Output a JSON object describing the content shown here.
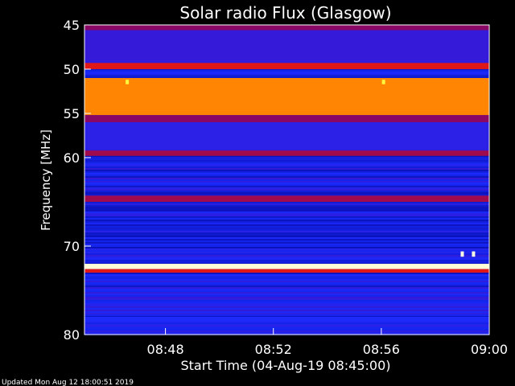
{
  "chart_data": {
    "type": "heatmap",
    "title": "Solar radio Flux (Glasgow)",
    "xlabel": "Start Time (04-Aug-19 08:45:00)",
    "ylabel": "Frequency [MHz]",
    "footer": "Updated Mon Aug 12 18:00:51 2019",
    "x_unit": "time",
    "xlim": [
      "08:45:00",
      "09:00:00"
    ],
    "ylim": [
      45,
      80
    ],
    "y_inverted": true,
    "x_ticks": [
      "08:48",
      "08:52",
      "08:56",
      "09:00"
    ],
    "y_ticks": [
      45,
      50,
      55,
      60,
      70,
      80
    ],
    "colormap": [
      "#000088",
      "#1a2cff",
      "#6000a0",
      "#c01020",
      "#ff2010",
      "#ff8000",
      "#ffff40",
      "#ffffff"
    ],
    "bands": [
      {
        "f_from": 45.0,
        "f_to": 45.6,
        "level": 0.35
      },
      {
        "f_from": 45.6,
        "f_to": 49.0,
        "level": 0.2
      },
      {
        "f_from": 49.3,
        "f_to": 50.0,
        "level": 0.5
      },
      {
        "f_from": 51.0,
        "f_to": 55.2,
        "level": 0.72
      },
      {
        "f_from": 55.2,
        "f_to": 56.0,
        "level": 0.35
      },
      {
        "f_from": 56.0,
        "f_to": 59.0,
        "level": 0.18
      },
      {
        "f_from": 59.2,
        "f_to": 59.8,
        "level": 0.38
      },
      {
        "f_from": 64.3,
        "f_to": 65.0,
        "level": 0.38
      },
      {
        "f_from": 72.0,
        "f_to": 72.6,
        "level": 0.97
      },
      {
        "f_from": 72.6,
        "f_to": 73.0,
        "level": 0.5
      },
      {
        "f_from": 78.0,
        "f_to": 78.5,
        "level": 0.15
      }
    ],
    "bursts": [
      {
        "time": "08:46:35",
        "f_from": 51.2,
        "f_to": 51.7,
        "level": 0.85
      },
      {
        "time": "08:56:05",
        "f_from": 51.2,
        "f_to": 51.7,
        "level": 0.85
      },
      {
        "time": "08:59:00",
        "f_from": 70.6,
        "f_to": 71.2,
        "level": 0.98
      },
      {
        "time": "08:59:25",
        "f_from": 70.6,
        "f_to": 71.2,
        "level": 0.98
      }
    ]
  }
}
